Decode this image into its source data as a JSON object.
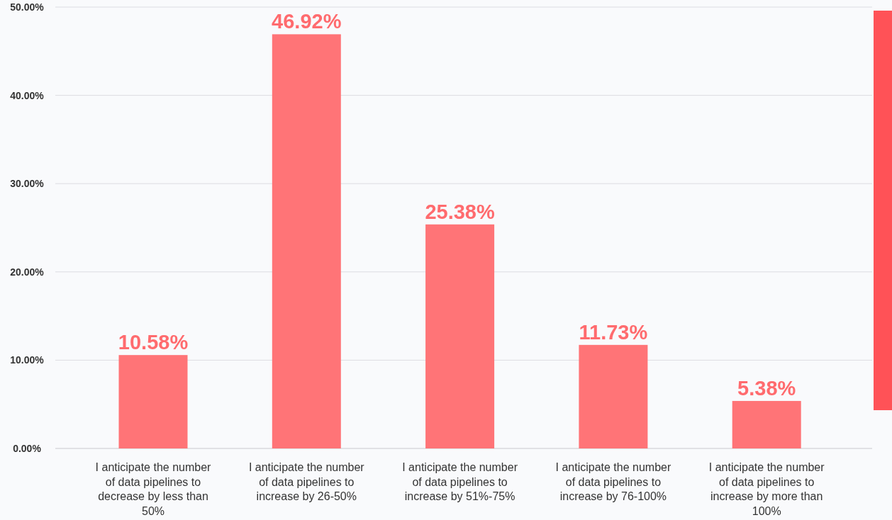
{
  "chart_data": {
    "type": "bar",
    "categories": [
      "I anticipate the number of data pipelines to decrease by less than 50%",
      "I anticipate the number of data pipelines to increase by 26-50%",
      "I anticipate the number of data pipelines to increase by 51%-75%",
      "I anticipate the number of data pipelines to increase by 76-100%",
      "I anticipate the number of data pipelines to increase by more than 100%"
    ],
    "values": [
      10.58,
      46.92,
      25.38,
      11.73,
      5.38
    ],
    "value_labels": [
      "10.58%",
      "46.92%",
      "25.38%",
      "11.73%",
      "5.38%"
    ],
    "color": "#ff7477",
    "ylim": [
      0,
      50
    ],
    "yticks": [
      {
        "value": 0,
        "label": "0.00%"
      },
      {
        "value": 10,
        "label": "10.00%"
      },
      {
        "value": 20,
        "label": "20.00%"
      },
      {
        "value": 30,
        "label": "30.00%"
      },
      {
        "value": 40,
        "label": "40.00%"
      },
      {
        "value": 50,
        "label": "50.00%"
      }
    ],
    "grid": "y"
  }
}
